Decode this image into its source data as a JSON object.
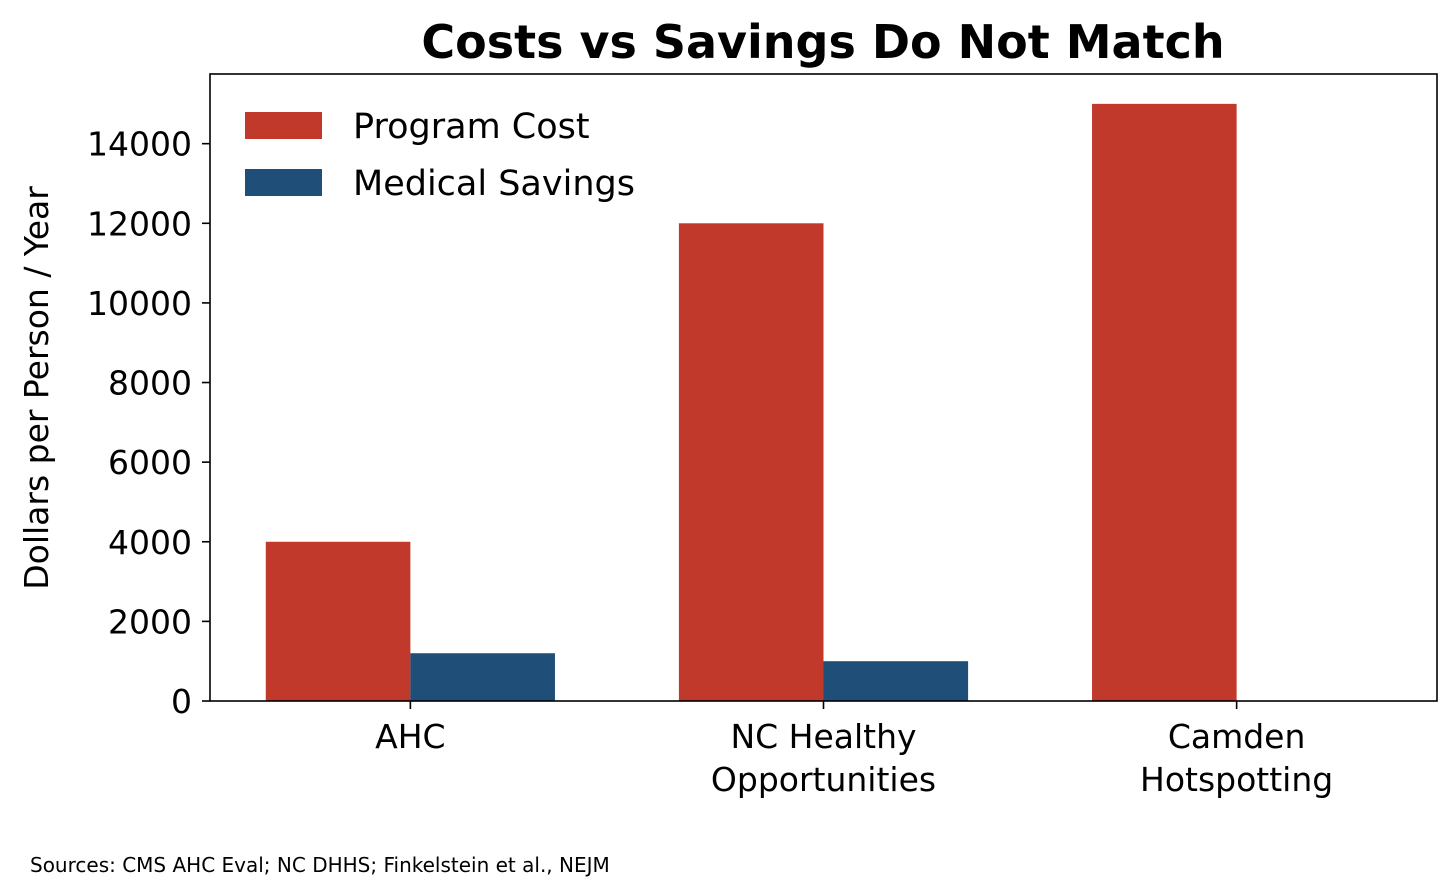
{
  "chart_data": {
    "type": "bar",
    "title": "Costs vs Savings Do Not Match",
    "xlabel": "",
    "ylabel": "Dollars per Person / Year",
    "categories": [
      [
        "AHC"
      ],
      [
        "NC Healthy",
        "Opportunities"
      ],
      [
        "Camden",
        "Hotspotting"
      ]
    ],
    "series": [
      {
        "name": "Program Cost",
        "color": "#c0392b",
        "values": [
          4000,
          12000,
          15000
        ]
      },
      {
        "name": "Medical Savings",
        "color": "#1f4e79",
        "values": [
          1200,
          1000,
          0
        ]
      }
    ],
    "ylim": [
      0,
      15750
    ],
    "yticks": [
      0,
      2000,
      4000,
      6000,
      8000,
      10000,
      12000,
      14000
    ],
    "grid": false,
    "legend_position": "top-left",
    "bar_width": 0.35,
    "xlim": [
      -0.485,
      2.485
    ]
  },
  "footnote": "Sources: CMS AHC Eval; NC DHHS; Finkelstein et al., NEJM"
}
